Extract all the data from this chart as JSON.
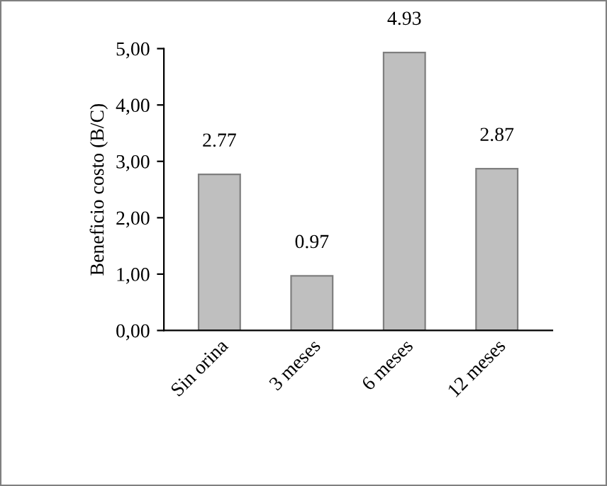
{
  "chart_data": {
    "type": "bar",
    "ylabel": "Beneficio costo (B/C)",
    "categories": [
      "Sin orina",
      "3 meses",
      "6 meses",
      "12 meses"
    ],
    "values": [
      2.77,
      0.97,
      4.93,
      2.87
    ],
    "color": "#bfbfbf",
    "ylim": [
      0,
      5
    ],
    "yticks": [
      {
        "value": 0,
        "label": "0,00"
      },
      {
        "value": 1,
        "label": "1,00"
      },
      {
        "value": 2,
        "label": "2,00"
      },
      {
        "value": 3,
        "label": "3,00"
      },
      {
        "value": 4,
        "label": "4,00"
      },
      {
        "value": 5,
        "label": "5,00"
      }
    ],
    "data_labels": true,
    "grid": false
  }
}
